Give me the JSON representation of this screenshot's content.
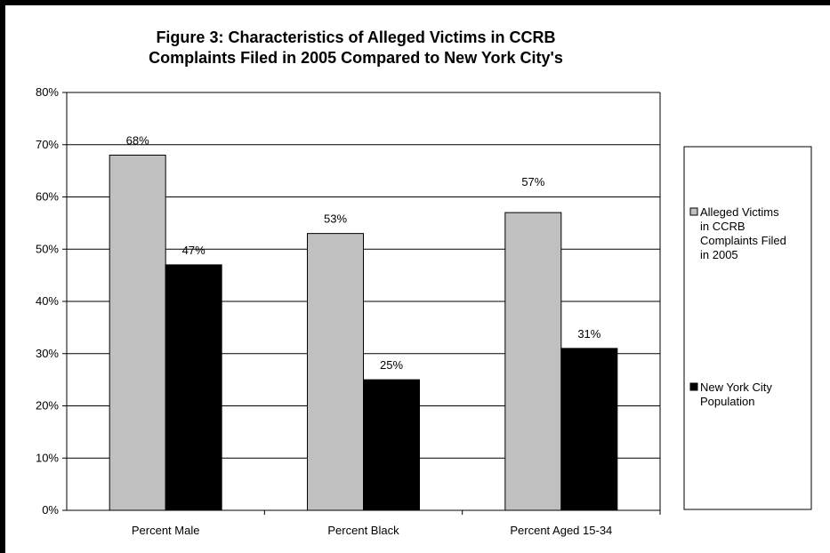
{
  "chart_data": {
    "type": "bar",
    "title": [
      "Figure 3: Characteristics of Alleged Victims in CCRB",
      "Complaints Filed in 2005 Compared to New York City's"
    ],
    "categories": [
      "Percent Male",
      "Percent Black",
      "Percent Aged 15-34"
    ],
    "series": [
      {
        "name": "Alleged Victims in CCRB Complaints Filed in 2005",
        "name_lines": [
          "Alleged Victims",
          "in CCRB",
          "Complaints Filed",
          "in 2005"
        ],
        "color": "#c0c0c0",
        "values": [
          68,
          53,
          57
        ],
        "labels": [
          "68%",
          "53%",
          "57%"
        ]
      },
      {
        "name": "New York City Population",
        "name_lines": [
          "New York City",
          "Population"
        ],
        "color": "#000000",
        "values": [
          47,
          25,
          31
        ],
        "labels": [
          "47%",
          "25%",
          "31%"
        ]
      }
    ],
    "ylim": [
      0,
      80
    ],
    "yticks": [
      0,
      10,
      20,
      30,
      40,
      50,
      60,
      70,
      80
    ],
    "ytick_labels": [
      "0%",
      "10%",
      "20%",
      "30%",
      "40%",
      "50%",
      "60%",
      "70%",
      "80%"
    ],
    "xlabel": "",
    "ylabel": "",
    "grid": true,
    "legend_position": "right"
  }
}
